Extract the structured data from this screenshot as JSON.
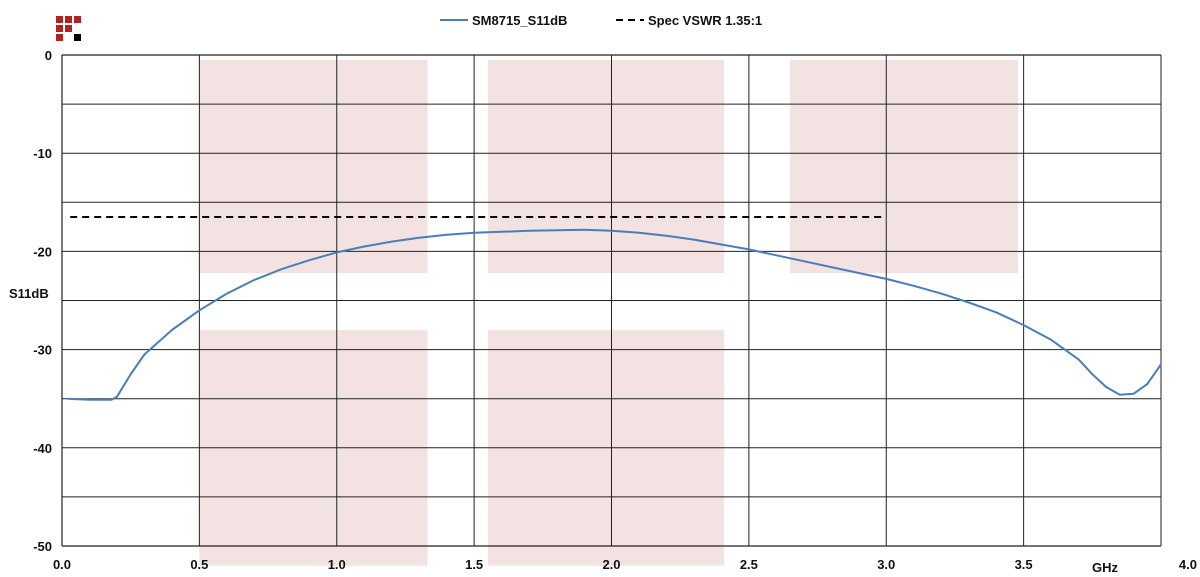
{
  "logo": {
    "icon": "brand-logo-icon",
    "colors": [
      "#b22222",
      "#b22222",
      "#b22222",
      "#b22222",
      "#b22222",
      "#b22222",
      "#000000"
    ]
  },
  "legend": {
    "placement": "top-center",
    "series_label": "SM8715_S11dB",
    "spec_label": "Spec VSWR 1.35:1"
  },
  "colors": {
    "series": "#4a7ebb",
    "spec": "#000000",
    "band_fill": "#f2e2e2",
    "grid": "#222222"
  },
  "chart_data": {
    "type": "line",
    "title": "",
    "xlabel": "GHz",
    "ylabel": "S11dB",
    "xlim": [
      0.0,
      4.0
    ],
    "ylim": [
      -50,
      0
    ],
    "grid": true,
    "x_ticks": [
      0.0,
      0.5,
      1.0,
      1.5,
      2.0,
      2.5,
      3.0,
      3.5,
      4.0
    ],
    "x_tick_labels": [
      "0.0",
      "0.5",
      "1.0",
      "1.5",
      "2.0",
      "2.5",
      "3.0",
      "3.5",
      "4.0"
    ],
    "x_gridlines": [
      0.5,
      1.0,
      1.5,
      2.0,
      2.5,
      3.0,
      3.5,
      4.0
    ],
    "y_ticks": [
      0,
      -10,
      -20,
      -30,
      -40,
      -50
    ],
    "y_tick_labels": [
      "0",
      "-10",
      "-20",
      "-30",
      "-40",
      "-50"
    ],
    "y_gridlines": [
      -5,
      -10,
      -15,
      -20,
      -25,
      -30,
      -35,
      -40,
      -45
    ],
    "series": [
      {
        "name": "SM8715_S11dB",
        "x": [
          0.02,
          0.1,
          0.18,
          0.2,
          0.25,
          0.3,
          0.4,
          0.5,
          0.6,
          0.7,
          0.8,
          0.9,
          1.0,
          1.1,
          1.2,
          1.3,
          1.4,
          1.5,
          1.6,
          1.7,
          1.8,
          1.9,
          2.0,
          2.1,
          2.2,
          2.3,
          2.4,
          2.5,
          2.6,
          2.7,
          2.8,
          2.9,
          3.0,
          3.1,
          3.2,
          3.3,
          3.4,
          3.5,
          3.6,
          3.7,
          3.75,
          3.8,
          3.85,
          3.9,
          3.95,
          4.0
        ],
        "y": [
          -35.0,
          -35.1,
          -35.1,
          -34.8,
          -32.5,
          -30.5,
          -28.0,
          -26.0,
          -24.3,
          -22.9,
          -21.8,
          -20.9,
          -20.1,
          -19.5,
          -19.0,
          -18.6,
          -18.3,
          -18.1,
          -18.0,
          -17.9,
          -17.85,
          -17.8,
          -17.9,
          -18.1,
          -18.4,
          -18.8,
          -19.3,
          -19.8,
          -20.4,
          -21.0,
          -21.6,
          -22.2,
          -22.8,
          -23.5,
          -24.3,
          -25.2,
          -26.2,
          -27.5,
          -29.0,
          -31.0,
          -32.5,
          -33.8,
          -34.6,
          -34.5,
          -33.5,
          -31.5
        ]
      },
      {
        "name": "Spec VSWR 1.35:1",
        "x": [
          0.03,
          3.0
        ],
        "y": [
          -16.5,
          -16.5
        ],
        "style": "dashed"
      }
    ],
    "shaded_bands": [
      {
        "x": [
          0.5,
          1.33
        ],
        "y": [
          -0.5,
          -22.2
        ]
      },
      {
        "x": [
          1.55,
          2.41
        ],
        "y": [
          -0.5,
          -22.2
        ]
      },
      {
        "x": [
          2.65,
          3.48
        ],
        "y": [
          -0.5,
          -22.2
        ]
      },
      {
        "x": [
          0.5,
          1.33
        ],
        "y": [
          -28.0,
          -52.0
        ]
      },
      {
        "x": [
          1.55,
          2.41
        ],
        "y": [
          -28.0,
          -52.0
        ]
      }
    ]
  }
}
